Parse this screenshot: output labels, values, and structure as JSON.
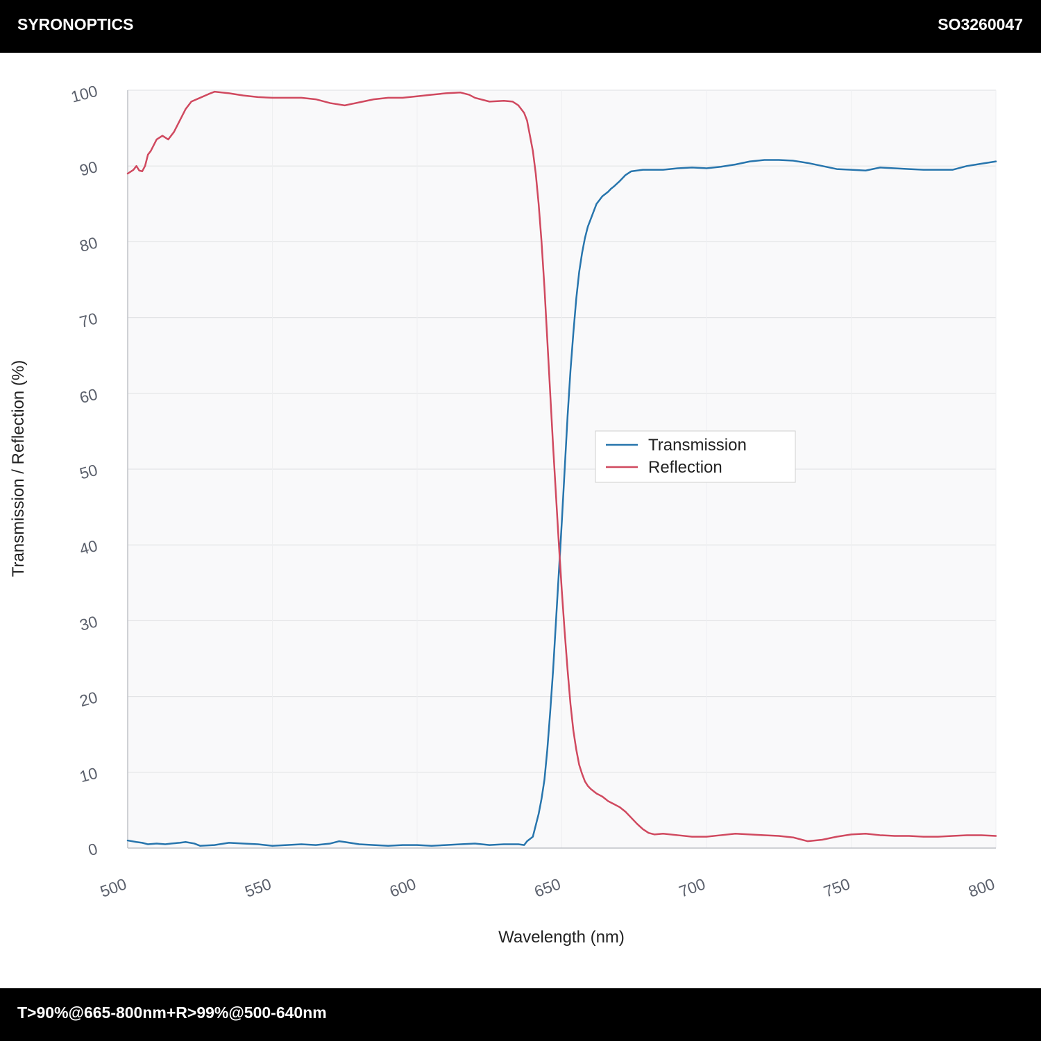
{
  "header": {
    "brand": "SYRONOPTICS",
    "code": "SO3260047"
  },
  "footer": {
    "spec": "T>90%@665-800nm+R>99%@500-640nm"
  },
  "colors": {
    "transmission": "#2775ad",
    "reflection": "#d0495f",
    "plot_bg": "#f9f9fa",
    "grid": "#e3e4e6",
    "axis": "#bfc2c7"
  },
  "chart_data": {
    "type": "line",
    "title": "",
    "xlabel": "Wavelength (nm)",
    "ylabel": "Transmission / Reflection (%)",
    "xlim": [
      500,
      800
    ],
    "ylim": [
      0,
      100
    ],
    "x_ticks": [
      500,
      550,
      600,
      650,
      700,
      750,
      800
    ],
    "y_ticks": [
      0,
      10,
      20,
      30,
      40,
      50,
      60,
      70,
      80,
      90,
      100
    ],
    "grid": true,
    "legend_position": "center-right",
    "series": [
      {
        "name": "Transmission",
        "color": "#2775ad",
        "x": [
          500,
          503,
          505,
          507,
          510,
          513,
          515,
          518,
          520,
          523,
          525,
          530,
          535,
          540,
          545,
          550,
          555,
          560,
          565,
          570,
          573,
          575,
          580,
          585,
          590,
          595,
          600,
          605,
          610,
          615,
          620,
          625,
          630,
          635,
          637,
          638,
          640,
          641,
          642,
          643,
          644,
          645,
          646,
          647,
          648,
          649,
          650,
          651,
          652,
          653,
          654,
          655,
          656,
          657,
          658,
          659,
          660,
          661,
          662,
          663,
          664,
          665,
          666,
          667,
          668,
          670,
          672,
          674,
          676,
          678,
          680,
          682,
          685,
          690,
          695,
          700,
          705,
          710,
          715,
          720,
          725,
          730,
          735,
          740,
          745,
          750,
          755,
          760,
          765,
          770,
          775,
          780,
          785,
          790,
          795,
          800
        ],
        "y": [
          1.0,
          0.8,
          0.7,
          0.5,
          0.6,
          0.5,
          0.6,
          0.7,
          0.8,
          0.6,
          0.3,
          0.4,
          0.7,
          0.6,
          0.5,
          0.3,
          0.4,
          0.5,
          0.4,
          0.6,
          0.9,
          0.8,
          0.5,
          0.4,
          0.3,
          0.4,
          0.4,
          0.3,
          0.4,
          0.5,
          0.6,
          0.4,
          0.5,
          0.5,
          0.4,
          0.9,
          1.5,
          3.0,
          4.5,
          6.5,
          9.0,
          13.0,
          18.0,
          23.5,
          30.0,
          36.5,
          43.0,
          50.0,
          57.0,
          63.0,
          68.0,
          72.5,
          76.0,
          78.5,
          80.5,
          82.0,
          83.0,
          84.0,
          85.0,
          85.5,
          86.0,
          86.3,
          86.6,
          87.0,
          87.3,
          88.0,
          88.8,
          89.3,
          89.4,
          89.5,
          89.5,
          89.5,
          89.5,
          89.7,
          89.8,
          89.7,
          89.9,
          90.2,
          90.6,
          90.8,
          90.8,
          90.7,
          90.4,
          90.0,
          89.6,
          89.5,
          89.4,
          89.8,
          89.7,
          89.6,
          89.5,
          89.5,
          89.5,
          90.0,
          90.3,
          90.6
        ]
      },
      {
        "name": "Reflection",
        "color": "#d0495f",
        "x": [
          500,
          502,
          503,
          504,
          505,
          506,
          507,
          508,
          510,
          512,
          514,
          516,
          518,
          520,
          522,
          525,
          528,
          530,
          535,
          540,
          545,
          550,
          555,
          560,
          565,
          570,
          575,
          580,
          585,
          590,
          595,
          600,
          605,
          610,
          615,
          618,
          620,
          625,
          630,
          633,
          635,
          637,
          638,
          639,
          640,
          641,
          642,
          643,
          644,
          645,
          646,
          647,
          648,
          649,
          650,
          651,
          652,
          653,
          654,
          655,
          656,
          657,
          658,
          659,
          660,
          661,
          662,
          663,
          664,
          665,
          666,
          667,
          668,
          670,
          672,
          674,
          676,
          678,
          680,
          682,
          685,
          690,
          695,
          700,
          705,
          710,
          715,
          720,
          725,
          730,
          735,
          740,
          745,
          750,
          755,
          760,
          765,
          770,
          775,
          780,
          785,
          790,
          795,
          800
        ],
        "y": [
          89.0,
          89.5,
          90.0,
          89.4,
          89.3,
          90.0,
          91.5,
          92.0,
          93.5,
          94.0,
          93.5,
          94.5,
          96.0,
          97.5,
          98.5,
          99.0,
          99.5,
          99.8,
          99.6,
          99.3,
          99.1,
          99.0,
          99.0,
          99.0,
          98.8,
          98.3,
          98.0,
          98.4,
          98.8,
          99.0,
          99.0,
          99.2,
          99.4,
          99.6,
          99.7,
          99.4,
          99.0,
          98.5,
          98.6,
          98.5,
          98.0,
          97.0,
          96.0,
          94.0,
          92.0,
          89.0,
          85.0,
          80.0,
          74.0,
          67.0,
          60.0,
          53.0,
          46.5,
          40.0,
          34.0,
          28.5,
          23.5,
          19.0,
          15.5,
          13.0,
          11.0,
          9.8,
          8.8,
          8.2,
          7.8,
          7.5,
          7.2,
          7.0,
          6.8,
          6.5,
          6.2,
          6.0,
          5.8,
          5.4,
          4.8,
          4.0,
          3.2,
          2.5,
          2.0,
          1.8,
          1.9,
          1.7,
          1.5,
          1.5,
          1.7,
          1.9,
          1.8,
          1.7,
          1.6,
          1.4,
          0.9,
          1.1,
          1.5,
          1.8,
          1.9,
          1.7,
          1.6,
          1.6,
          1.5,
          1.5,
          1.6,
          1.7,
          1.7,
          1.6
        ]
      }
    ]
  }
}
